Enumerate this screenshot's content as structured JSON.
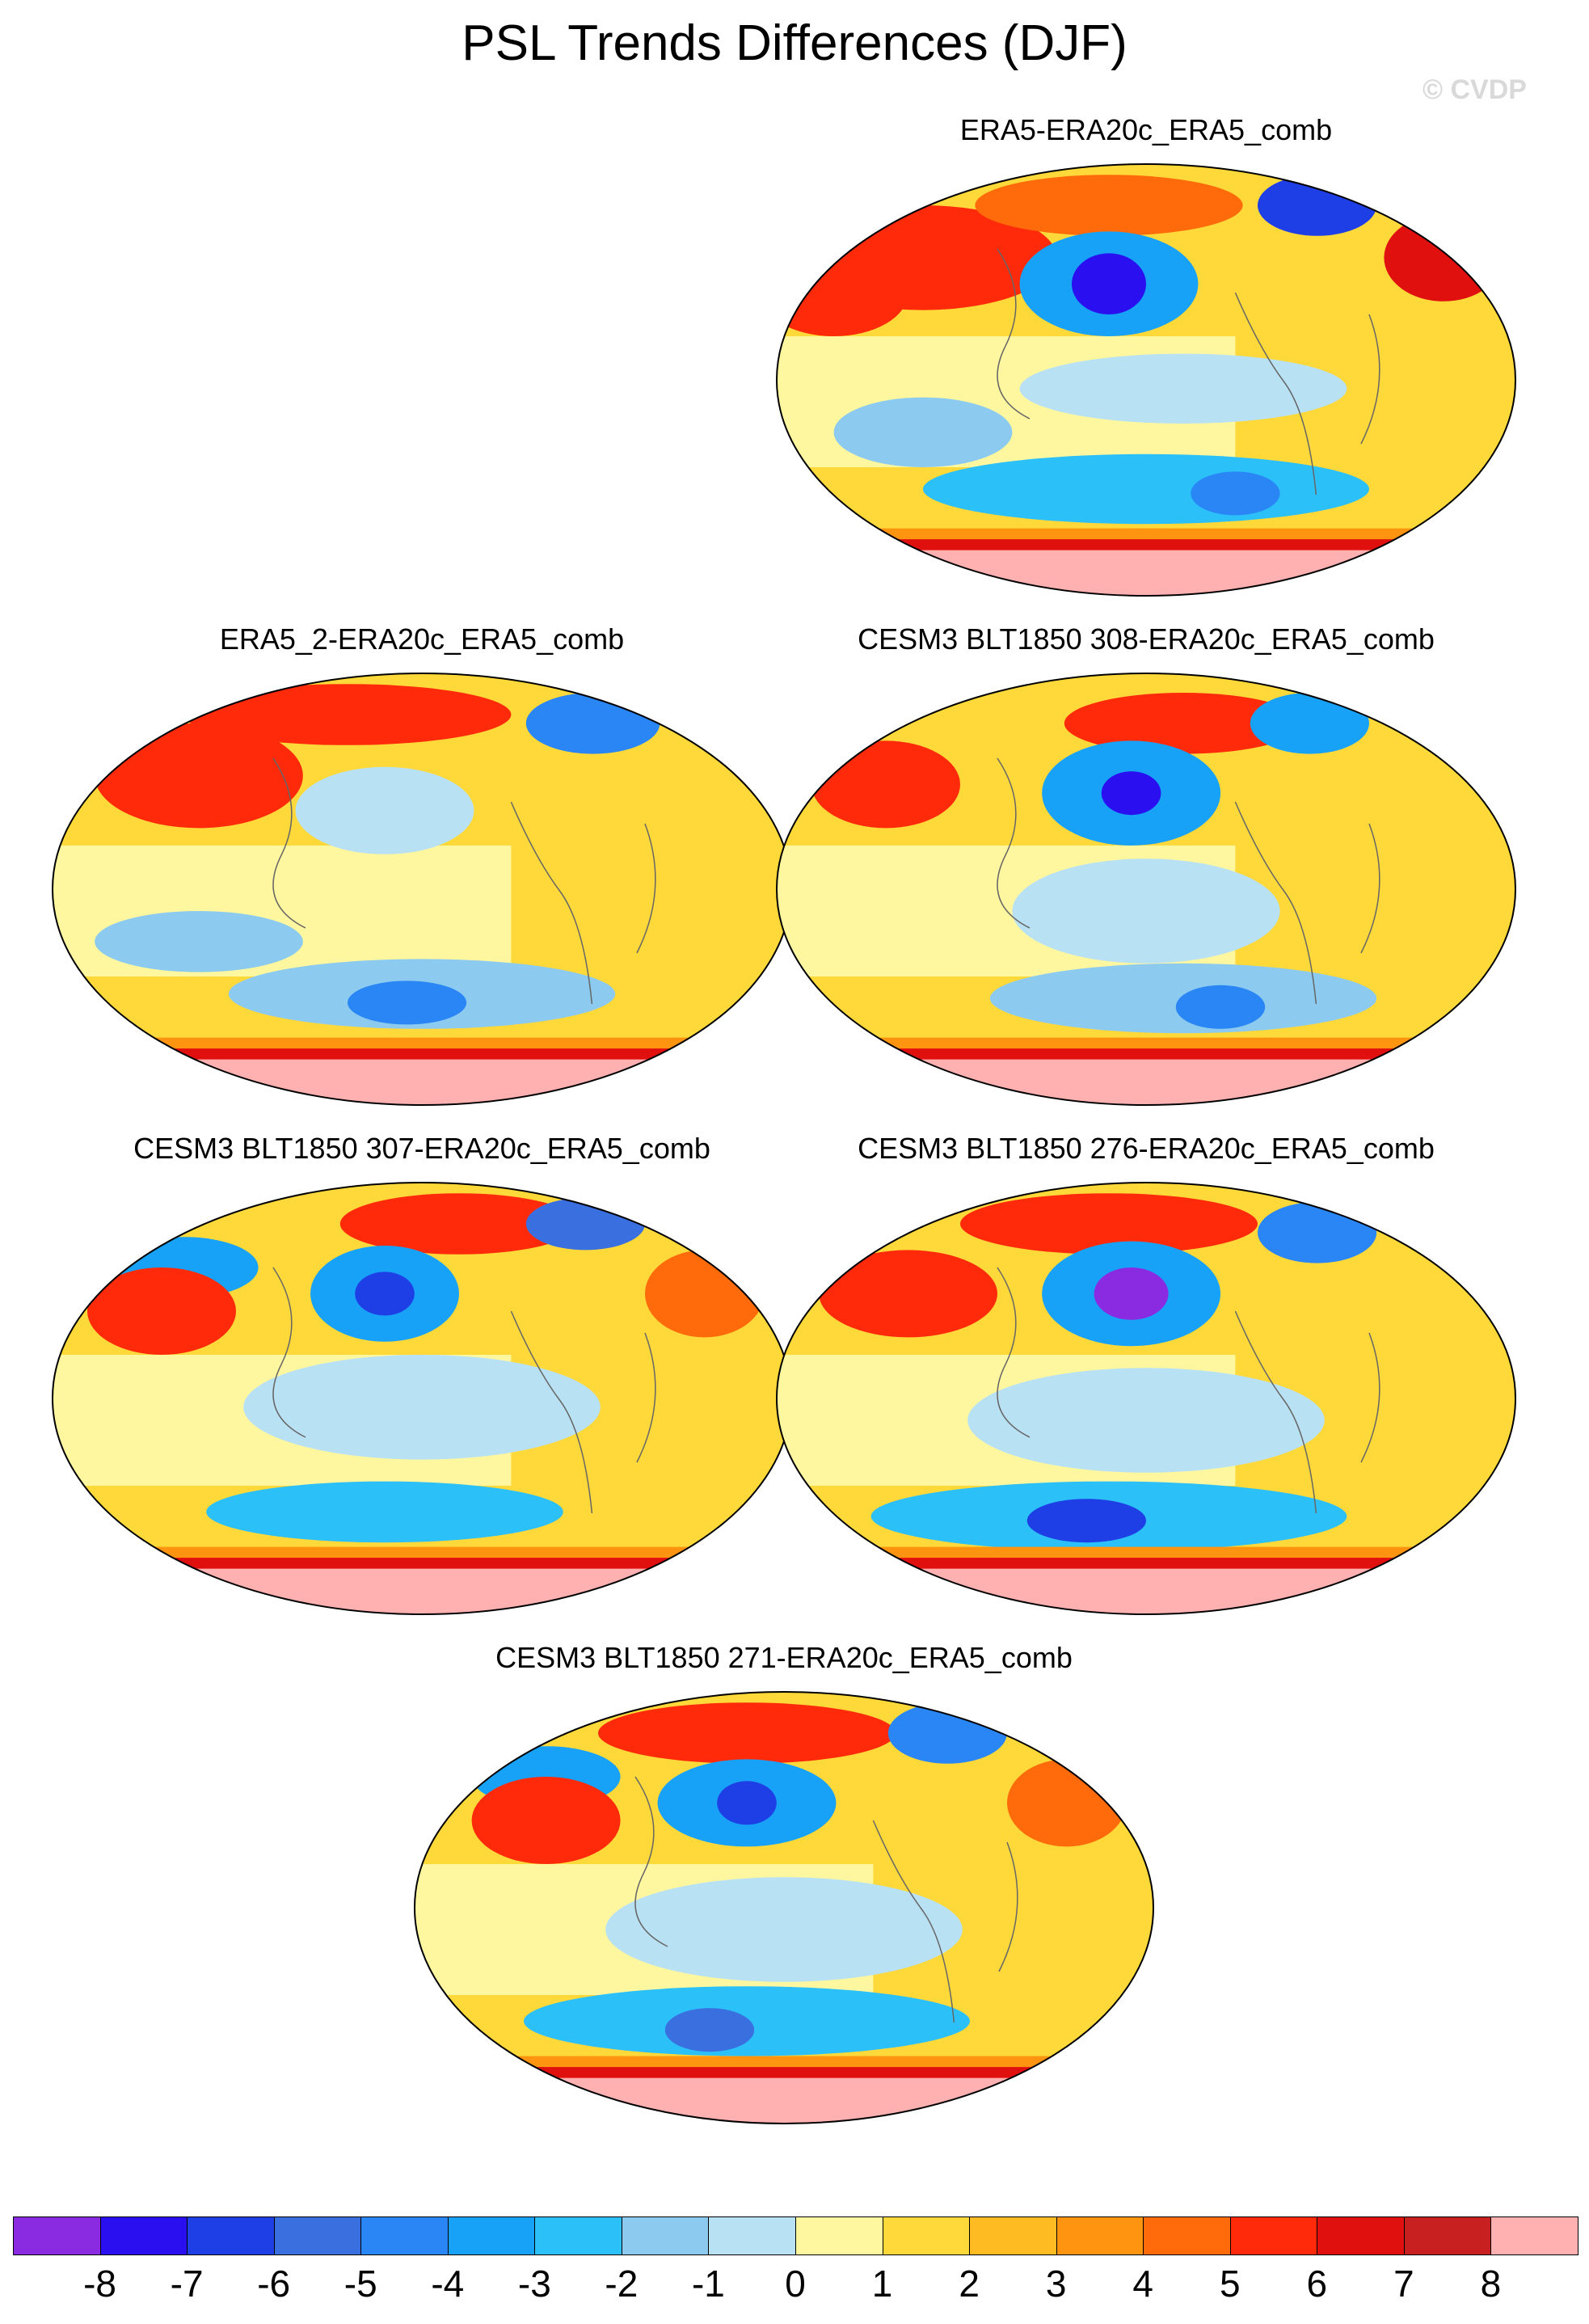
{
  "title": "PSL Trends Differences (DJF)",
  "watermark": "© CVDP",
  "panels": [
    {
      "id": "p1",
      "title": "ERA5-ERA20c_ERA5_comb"
    },
    {
      "id": "p2",
      "title": "ERA5_2-ERA20c_ERA5_comb"
    },
    {
      "id": "p3",
      "title": "CESM3 BLT1850 308-ERA20c_ERA5_comb"
    },
    {
      "id": "p4",
      "title": "CESM3 BLT1850 307-ERA20c_ERA5_comb"
    },
    {
      "id": "p5",
      "title": "CESM3 BLT1850 276-ERA20c_ERA5_comb"
    },
    {
      "id": "p6",
      "title": "CESM3 BLT1850 271-ERA20c_ERA5_comb"
    }
  ],
  "colorbar": {
    "labels": [
      "-8",
      "-7",
      "-6",
      "-5",
      "-4",
      "-3",
      "-2",
      "-1",
      "0",
      "1",
      "2",
      "3",
      "4",
      "5",
      "6",
      "7",
      "8"
    ],
    "colors": [
      "#8a2be2",
      "#2a10f0",
      "#1e3ee6",
      "#3a6fe0",
      "#2a86f4",
      "#17a2f7",
      "#2cc0f8",
      "#8ccbef",
      "#b9e1f4",
      "#fff7a0",
      "#ffd83a",
      "#ffbb22",
      "#ff9410",
      "#ff6a0a",
      "#ff2a0a",
      "#e0100f",
      "#c82020",
      "#ffb0b0"
    ]
  }
}
